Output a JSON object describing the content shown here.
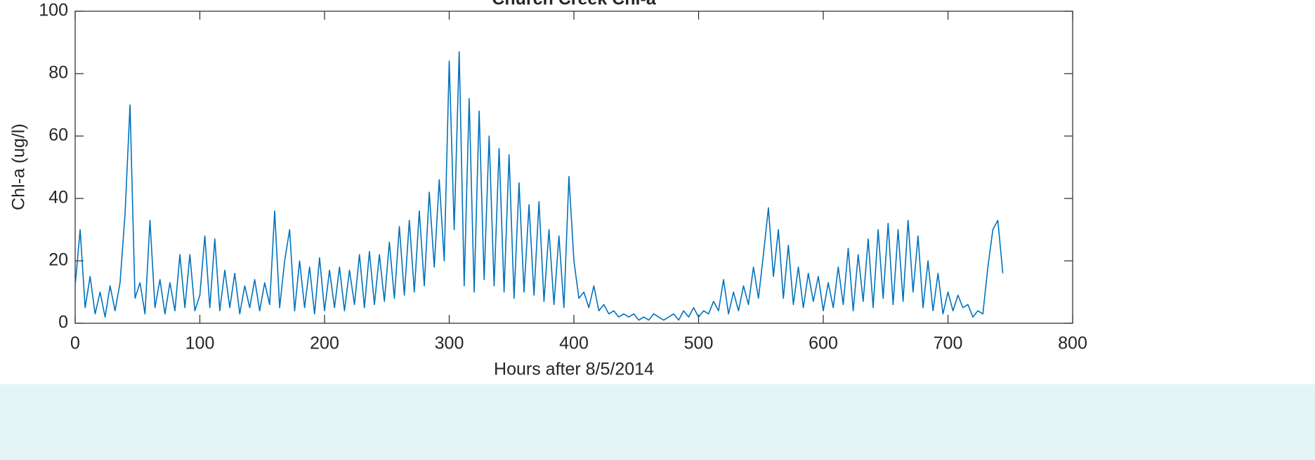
{
  "chart_data": {
    "type": "line",
    "title": "Church Creek Chl-a",
    "x_label": "Hours after 8/5/2014",
    "y_label": "Chl-a (ug/l)",
    "xlim": [
      0,
      800
    ],
    "xticks": [
      0,
      100,
      200,
      300,
      400,
      500,
      600,
      700,
      800
    ],
    "ylim": [
      0,
      100
    ],
    "yticks": [
      0,
      20,
      40,
      60,
      80,
      100
    ],
    "color": "#0072bd",
    "x": [
      0,
      4,
      8,
      12,
      16,
      20,
      24,
      28,
      32,
      36,
      40,
      44,
      48,
      52,
      56,
      60,
      64,
      68,
      72,
      76,
      80,
      84,
      88,
      92,
      96,
      100,
      104,
      108,
      112,
      116,
      120,
      124,
      128,
      132,
      136,
      140,
      144,
      148,
      152,
      156,
      160,
      164,
      168,
      172,
      176,
      180,
      184,
      188,
      192,
      196,
      200,
      204,
      208,
      212,
      216,
      220,
      224,
      228,
      232,
      236,
      240,
      244,
      248,
      252,
      256,
      260,
      264,
      268,
      272,
      276,
      280,
      284,
      288,
      292,
      296,
      300,
      304,
      308,
      312,
      316,
      320,
      324,
      328,
      332,
      336,
      340,
      344,
      348,
      352,
      356,
      360,
      364,
      368,
      372,
      376,
      380,
      384,
      388,
      392,
      396,
      400,
      404,
      408,
      412,
      416,
      420,
      424,
      428,
      432,
      436,
      440,
      444,
      448,
      452,
      456,
      460,
      464,
      468,
      472,
      476,
      480,
      484,
      488,
      492,
      496,
      500,
      504,
      508,
      512,
      516,
      520,
      524,
      528,
      532,
      536,
      540,
      544,
      548,
      552,
      556,
      560,
      564,
      568,
      572,
      576,
      580,
      584,
      588,
      592,
      596,
      600,
      604,
      608,
      612,
      616,
      620,
      624,
      628,
      632,
      636,
      640,
      644,
      648,
      652,
      656,
      660,
      664,
      668,
      672,
      676,
      680,
      684,
      688,
      692,
      696,
      700,
      704,
      708,
      712,
      716,
      720,
      724,
      728,
      732,
      736,
      740,
      744
    ],
    "values": [
      12,
      30,
      5,
      15,
      3,
      10,
      2,
      12,
      4,
      13,
      35,
      70,
      8,
      13,
      3,
      33,
      5,
      14,
      3,
      13,
      4,
      22,
      5,
      22,
      4,
      9,
      28,
      5,
      27,
      4,
      17,
      5,
      16,
      3,
      12,
      5,
      14,
      4,
      13,
      6,
      36,
      5,
      20,
      30,
      4,
      20,
      5,
      18,
      3,
      21,
      4,
      17,
      5,
      18,
      4,
      17,
      6,
      22,
      5,
      23,
      6,
      22,
      7,
      26,
      8,
      31,
      9,
      33,
      10,
      36,
      12,
      42,
      18,
      46,
      20,
      84,
      30,
      87,
      12,
      72,
      10,
      68,
      14,
      60,
      12,
      56,
      10,
      54,
      8,
      45,
      10,
      38,
      9,
      39,
      7,
      30,
      6,
      28,
      5,
      47,
      20,
      8,
      10,
      5,
      12,
      4,
      6,
      3,
      4,
      2,
      3,
      2,
      3,
      1,
      2,
      1,
      3,
      2,
      1,
      2,
      3,
      1,
      4,
      2,
      5,
      2,
      4,
      3,
      7,
      4,
      14,
      3,
      10,
      4,
      12,
      6,
      18,
      8,
      22,
      37,
      15,
      30,
      8,
      25,
      6,
      18,
      5,
      16,
      7,
      15,
      4,
      13,
      5,
      18,
      6,
      24,
      4,
      22,
      7,
      27,
      5,
      30,
      8,
      32,
      6,
      30,
      7,
      33,
      10,
      28,
      5,
      20,
      4,
      16,
      3,
      10,
      4,
      9,
      5,
      6,
      2,
      4,
      3,
      18,
      30,
      33,
      16
    ]
  }
}
